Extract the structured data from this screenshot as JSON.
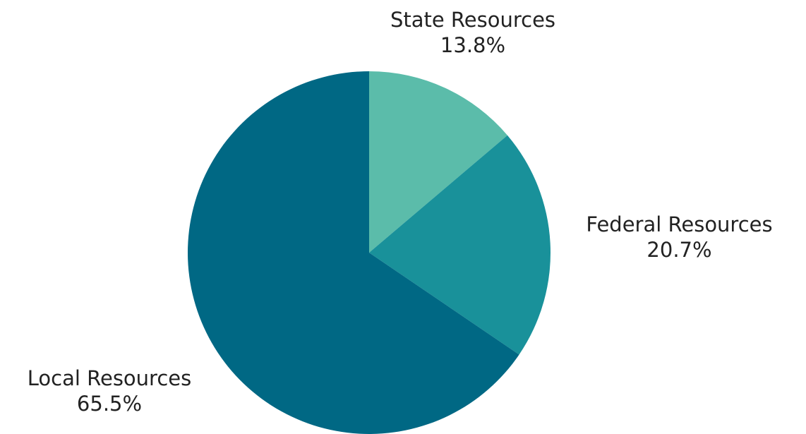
{
  "chart_data": {
    "type": "pie",
    "title": "",
    "slices": [
      {
        "label": "State Resources",
        "value": 13.8,
        "value_label": "13.8%",
        "color": "#5bbcaa"
      },
      {
        "label": "Federal Resources",
        "value": 20.7,
        "value_label": "20.7%",
        "color": "#19919a"
      },
      {
        "label": "Local Resources",
        "value": 65.5,
        "value_label": "65.5%",
        "color": "#006884"
      }
    ],
    "start_angle_deg": 0,
    "direction": "clockwise",
    "legend": "none"
  }
}
